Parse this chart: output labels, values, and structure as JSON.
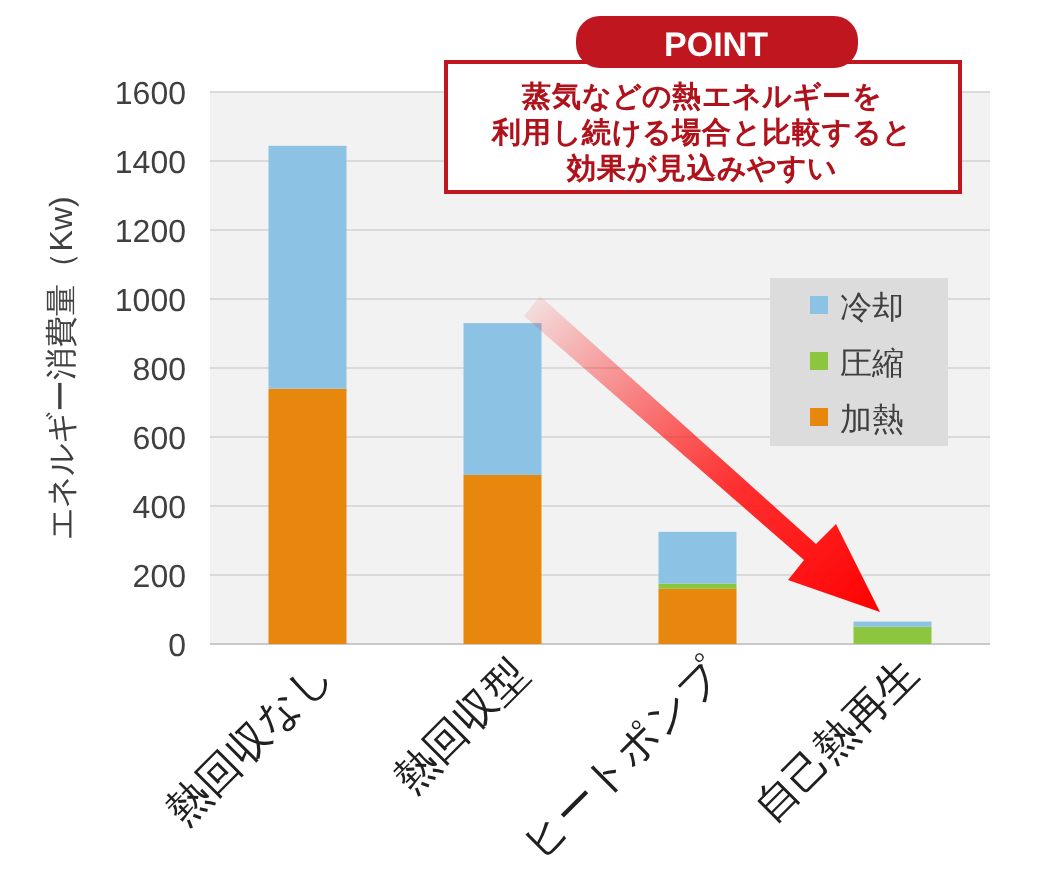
{
  "chart_data": {
    "type": "bar",
    "stacked": true,
    "ylabel": "エネルギー消費量（Kw)",
    "categories": [
      "熱回収なし",
      "熱回収型",
      "ヒートポンプ",
      "自己熱再生"
    ],
    "series": [
      {
        "name": "加熱",
        "color": "#e8870e",
        "values": [
          740,
          490,
          160,
          0
        ]
      },
      {
        "name": "圧縮",
        "color": "#8cc63f",
        "values": [
          0,
          0,
          15,
          50
        ]
      },
      {
        "name": "冷却",
        "color": "#8cc2e3",
        "values": [
          704,
          440,
          150,
          15
        ]
      }
    ],
    "ylim": [
      0,
      1600
    ],
    "yticks": [
      0,
      200,
      400,
      600,
      800,
      1000,
      1200,
      1400,
      1600
    ],
    "grid": "y",
    "legend": "right",
    "annotations": [
      "POINT",
      "蒸気などの熱エネルギーを",
      "利用し続ける場合と比較すると",
      "効果が見込みやすい"
    ]
  }
}
